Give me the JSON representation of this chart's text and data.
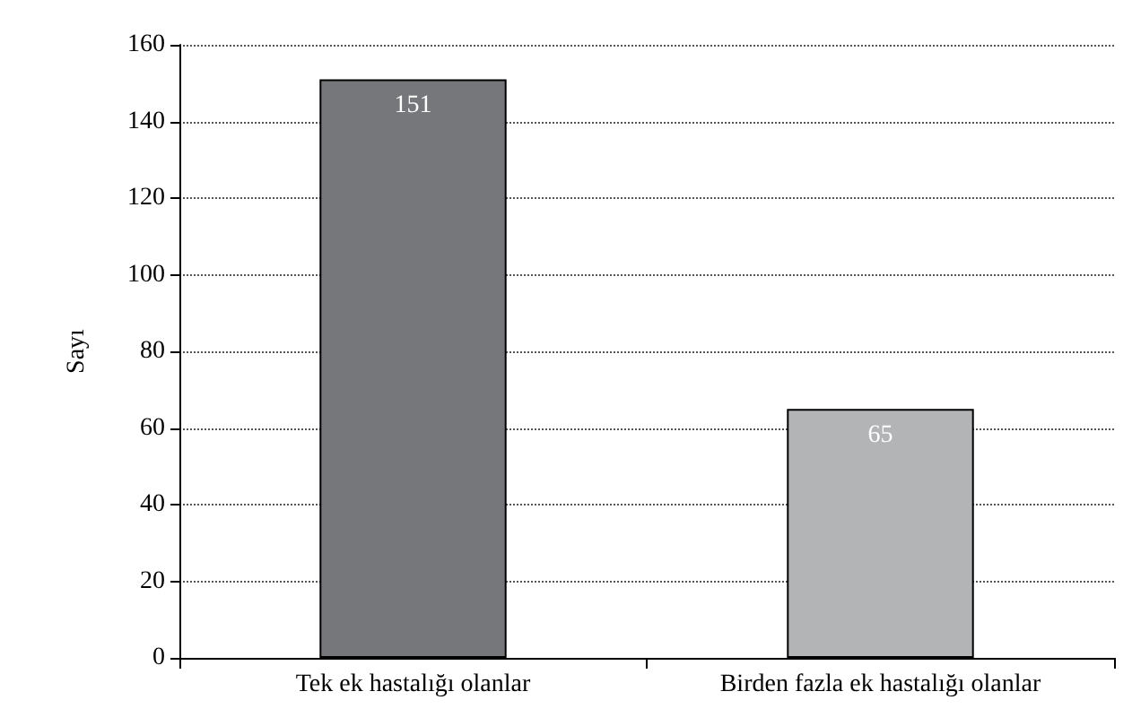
{
  "chart_data": {
    "type": "bar",
    "ylabel": "Sayı",
    "categories": [
      "Tek ek hastalığı olanlar",
      "Birden fazla ek hastalığı olanlar"
    ],
    "values": [
      151,
      65
    ],
    "colors": [
      "#76777b",
      "#b2b4b6"
    ],
    "ylim": [
      0,
      160
    ],
    "yticks": [
      0,
      20,
      40,
      60,
      80,
      100,
      120,
      140,
      160
    ],
    "grid": "y",
    "data_labels": true
  }
}
